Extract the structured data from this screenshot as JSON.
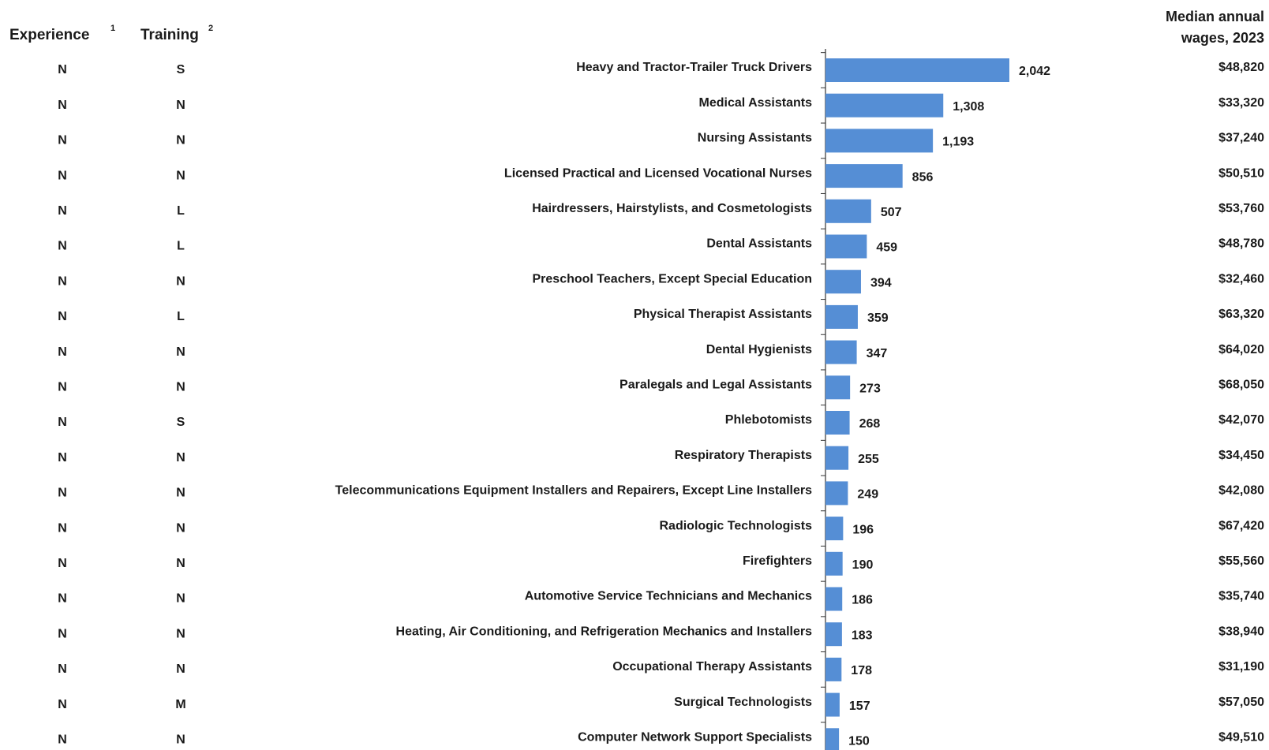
{
  "chart_data": {
    "type": "bar",
    "orientation": "horizontal",
    "color": "#558ed5",
    "experience_header": {
      "label": "Experience",
      "note": "1"
    },
    "training_header": {
      "label": "Training",
      "note": "2"
    },
    "wages_header": "Median annual wages, 2023",
    "categories": [
      "Heavy and Tractor-Trailer Truck Drivers",
      "Medical Assistants",
      "Nursing Assistants",
      "Licensed Practical and Licensed Vocational Nurses",
      "Hairdressers, Hairstylists, and Cosmetologists",
      "Dental Assistants",
      "Preschool Teachers, Except Special Education",
      "Physical Therapist Assistants",
      "Dental Hygienists",
      "Paralegals and Legal Assistants",
      "Phlebotomists",
      "Respiratory Therapists",
      "Telecommunications Equipment Installers and Repairers, Except Line Installers",
      "Radiologic Technologists",
      "Firefighters",
      "Automotive Service Technicians and Mechanics",
      "Heating, Air Conditioning, and Refrigeration Mechanics and Installers",
      "Occupational Therapy Assistants",
      "Surgical Technologists",
      "Computer Network Support Specialists"
    ],
    "values": [
      2042,
      1308,
      1193,
      856,
      507,
      459,
      394,
      359,
      347,
      273,
      268,
      255,
      249,
      196,
      190,
      186,
      183,
      178,
      157,
      150
    ],
    "value_labels": [
      "2,042",
      "1,308",
      "1,193",
      "856",
      "507",
      "459",
      "394",
      "359",
      "347",
      "273",
      "268",
      "255",
      "249",
      "196",
      "190",
      "186",
      "183",
      "178",
      "157",
      "150"
    ],
    "experience": [
      "N",
      "N",
      "N",
      "N",
      "N",
      "N",
      "N",
      "N",
      "N",
      "N",
      "N",
      "N",
      "N",
      "N",
      "N",
      "N",
      "N",
      "N",
      "N",
      "N"
    ],
    "training": [
      "S",
      "N",
      "N",
      "N",
      "L",
      "L",
      "N",
      "L",
      "N",
      "N",
      "S",
      "N",
      "N",
      "N",
      "N",
      "N",
      "N",
      "N",
      "M",
      "N"
    ],
    "wages": [
      "$48,820",
      "$33,320",
      "$37,240",
      "$50,510",
      "$53,760",
      "$48,780",
      "$32,460",
      "$63,320",
      "$64,020",
      "$68,050",
      "$42,070",
      "$34,450",
      "$42,080",
      "$67,420",
      "$55,560",
      "$35,740",
      "$38,940",
      "$31,190",
      "$57,050",
      "$49,510"
    ]
  }
}
